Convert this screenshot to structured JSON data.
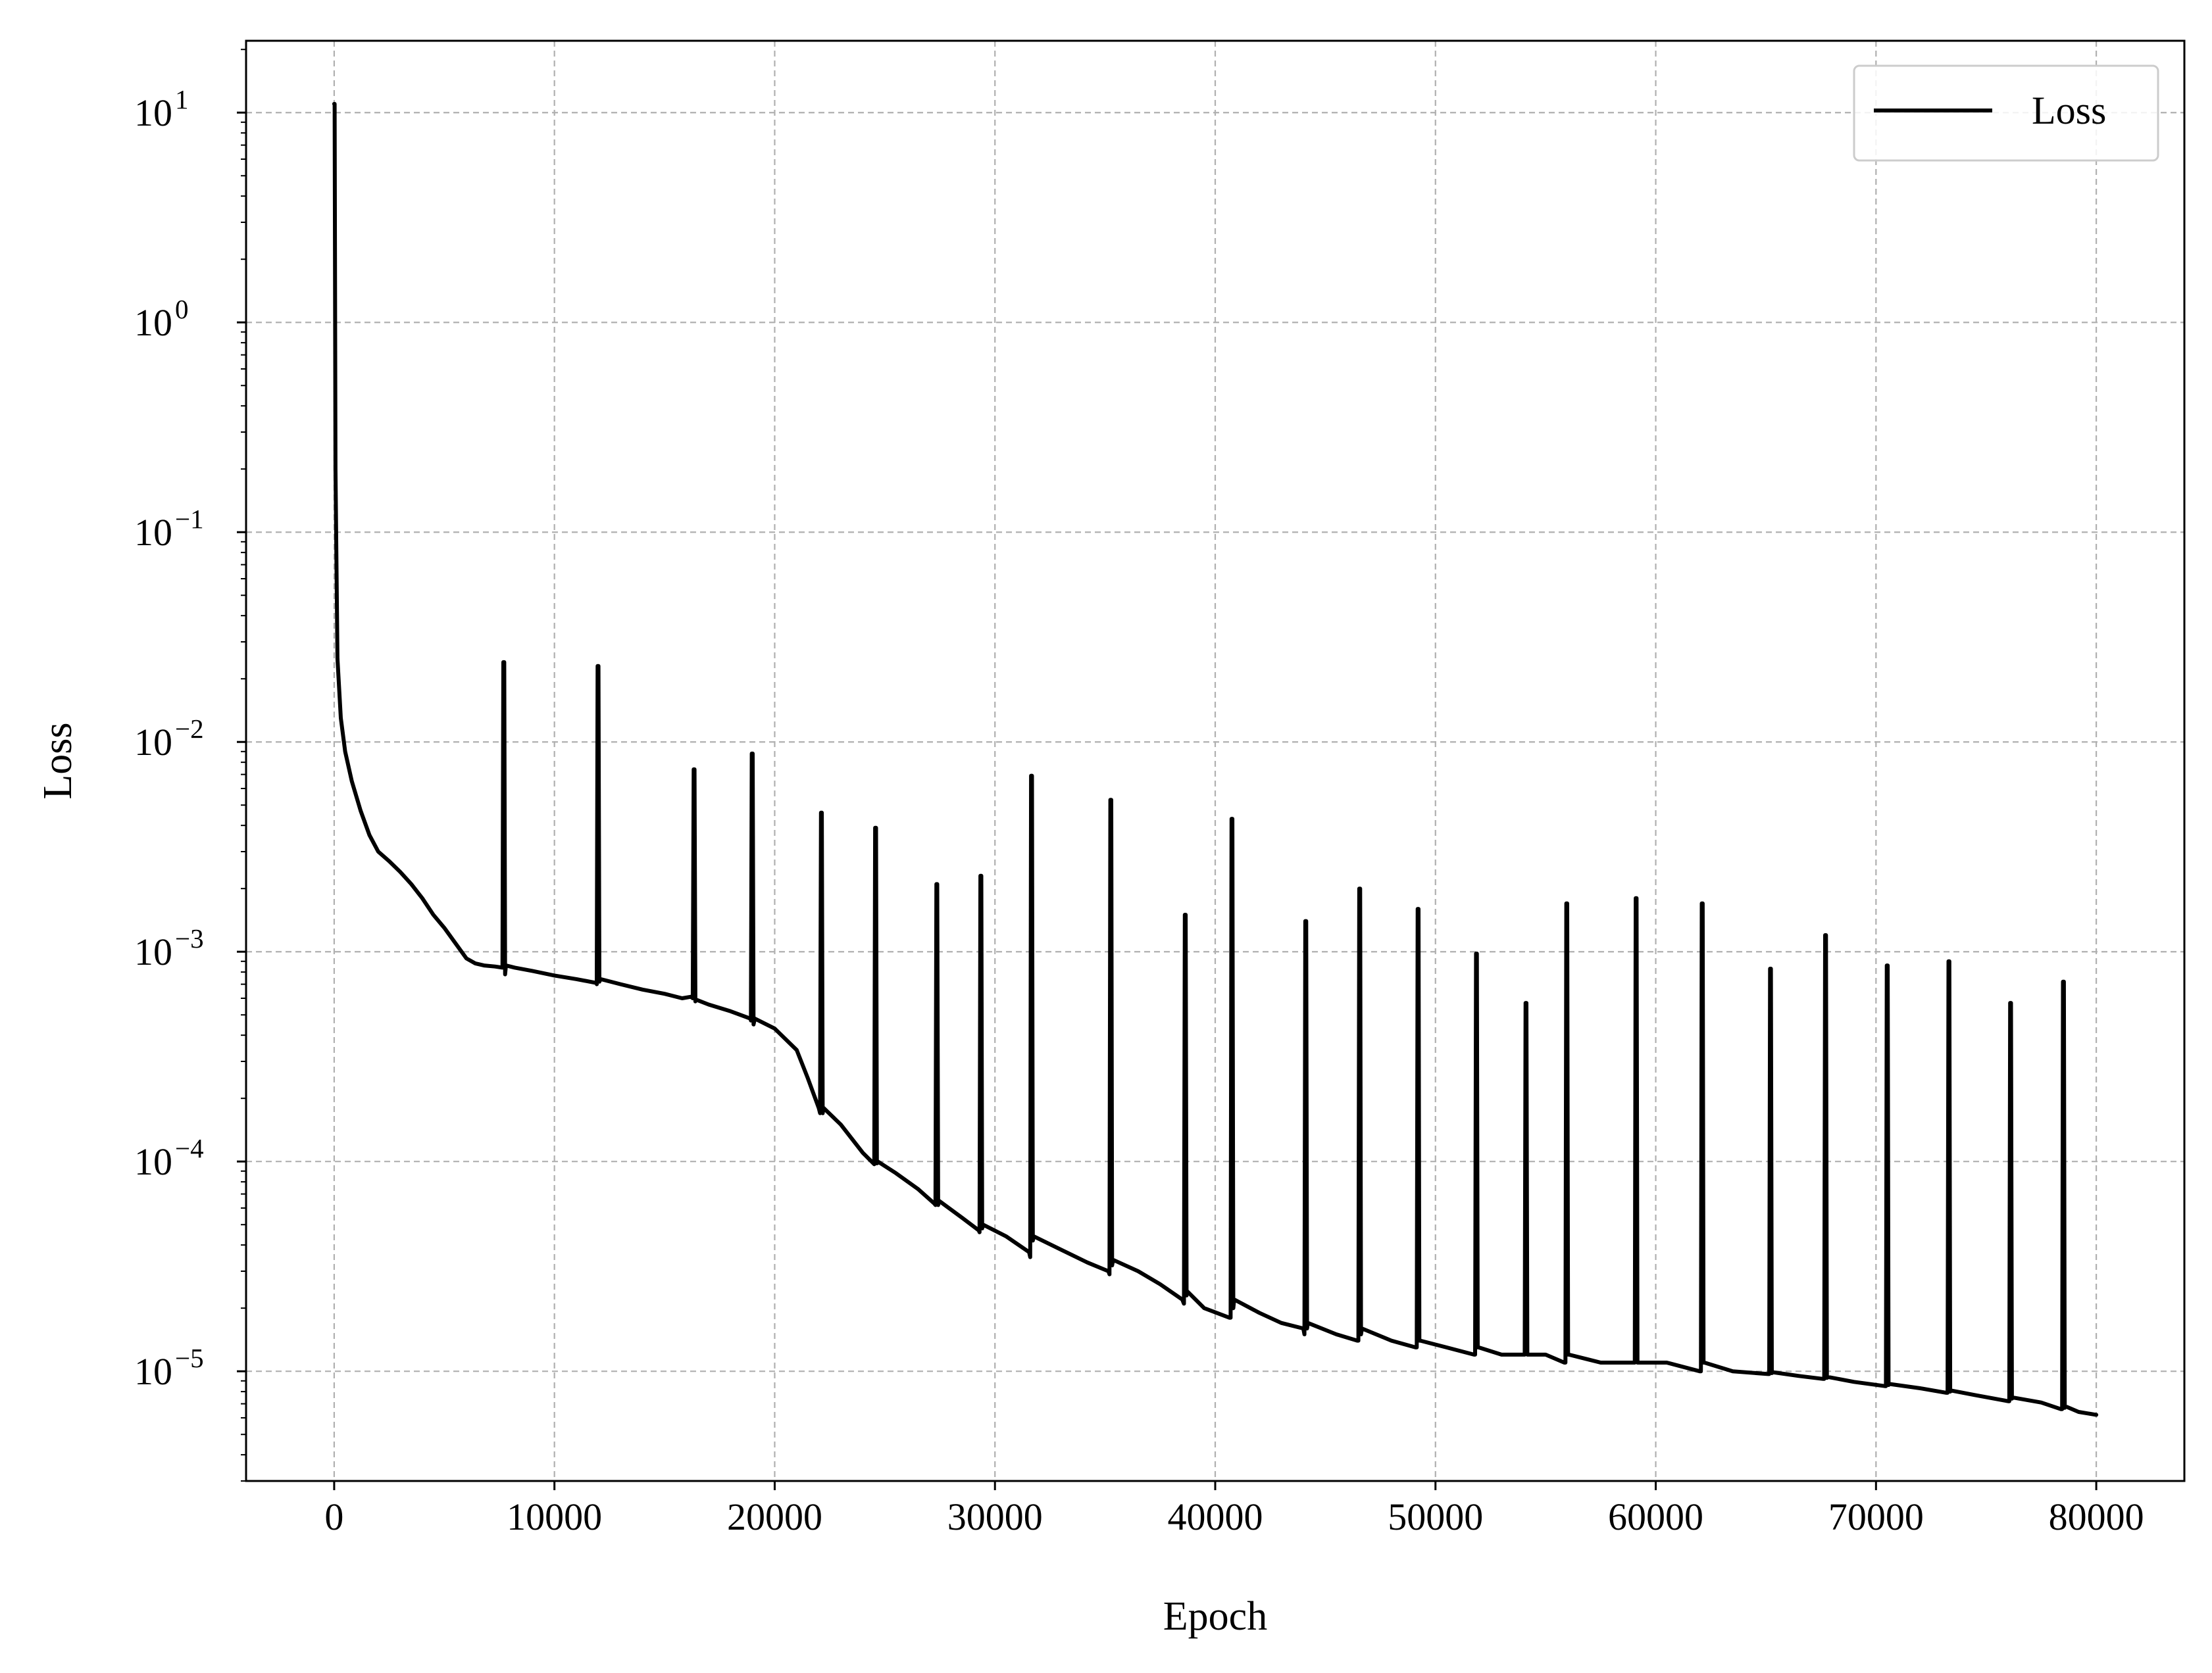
{
  "chart_data": {
    "type": "line",
    "title": "",
    "xlabel": "Epoch",
    "ylabel": "Loss",
    "xlim": [
      -4000,
      84000
    ],
    "ylim": [
      3e-06,
      22
    ],
    "yscale": "log",
    "grid": true,
    "legend_position": "top-right",
    "x_ticks": [
      0,
      10000,
      20000,
      30000,
      40000,
      50000,
      60000,
      70000,
      80000
    ],
    "x_tick_labels": [
      "0",
      "10000",
      "20000",
      "30000",
      "40000",
      "50000",
      "60000",
      "70000",
      "80000"
    ],
    "y_ticks": [
      10.0,
      1.0,
      0.1,
      0.01,
      0.001,
      0.0001,
      1e-05
    ],
    "y_tick_labels": [
      {
        "base": "10",
        "exp": "1"
      },
      {
        "base": "10",
        "exp": "0"
      },
      {
        "base": "10",
        "exp": "−1"
      },
      {
        "base": "10",
        "exp": "−2"
      },
      {
        "base": "10",
        "exp": "−3"
      },
      {
        "base": "10",
        "exp": "−4"
      },
      {
        "base": "10",
        "exp": "−5"
      }
    ],
    "series": [
      {
        "name": "Loss",
        "color": "#000000",
        "x": [
          0,
          20,
          60,
          150,
          300,
          500,
          800,
          1200,
          1600,
          2000,
          2500,
          3000,
          3500,
          4000,
          4500,
          5000,
          5500,
          6000,
          6400,
          6800,
          7300,
          7640,
          7680,
          7720,
          7760,
          7800,
          8200,
          9000,
          10000,
          11000,
          11900,
          11920,
          11960,
          12000,
          12040,
          12100,
          13000,
          14000,
          15000,
          15800,
          16200,
          16280,
          16320,
          16360,
          16400,
          16450,
          17000,
          18000,
          18900,
          18920,
          18960,
          19000,
          19040,
          19100,
          20000,
          21000,
          21500,
          22000,
          22060,
          22100,
          22140,
          22180,
          22220,
          23000,
          24000,
          24520,
          24560,
          24600,
          24640,
          24680,
          25500,
          26500,
          27250,
          27300,
          27340,
          27380,
          27420,
          27460,
          28500,
          29260,
          29300,
          29340,
          29380,
          29420,
          29460,
          30500,
          31550,
          31600,
          31640,
          31680,
          31720,
          31760,
          33000,
          34200,
          35150,
          35200,
          35240,
          35280,
          35320,
          35360,
          36500,
          37500,
          38500,
          38580,
          38620,
          38660,
          38700,
          38740,
          39500,
          40650,
          40700,
          40740,
          40780,
          40820,
          40860,
          42000,
          43000,
          44000,
          44050,
          44090,
          44130,
          44170,
          44210,
          45500,
          46450,
          46500,
          46540,
          46580,
          46620,
          46660,
          48000,
          49100,
          49150,
          49190,
          49230,
          49270,
          49310,
          50500,
          51750,
          51800,
          51840,
          51880,
          51920,
          51960,
          53000,
          54000,
          54050,
          54090,
          54130,
          54170,
          54210,
          55000,
          55850,
          55900,
          55940,
          55980,
          56020,
          56060,
          57500,
          59000,
          59050,
          59090,
          59130,
          59170,
          59210,
          60500,
          62000,
          62050,
          62090,
          62130,
          62170,
          62210,
          63500,
          65100,
          65150,
          65190,
          65230,
          65270,
          65310,
          66500,
          67600,
          67650,
          67690,
          67730,
          67770,
          67810,
          69000,
          70400,
          70450,
          70490,
          70530,
          70570,
          70610,
          72000,
          73200,
          73250,
          73290,
          73330,
          73370,
          73410,
          74500,
          76000,
          76050,
          76090,
          76130,
          76170,
          76210,
          77500,
          78400,
          78450,
          78490,
          78530,
          78570,
          78610,
          79200,
          80000
        ],
        "y": [
          11,
          11,
          0.2,
          0.025,
          0.013,
          0.009,
          0.0065,
          0.0047,
          0.0036,
          0.003,
          0.0027,
          0.0024,
          0.0021,
          0.0018,
          0.0015,
          0.0013,
          0.0011,
          0.00093,
          0.00088,
          0.00086,
          0.00085,
          0.00084,
          0.024,
          0.024,
          0.00078,
          0.00086,
          0.00084,
          0.00081,
          0.00077,
          0.00074,
          0.00071,
          0.0007,
          0.023,
          0.023,
          0.00072,
          0.00074,
          0.0007,
          0.00066,
          0.00063,
          0.0006,
          0.00061,
          0.0006,
          0.0074,
          0.0074,
          0.00058,
          0.00059,
          0.00056,
          0.00052,
          0.00048,
          0.00047,
          0.0088,
          0.0088,
          0.00045,
          0.00048,
          0.00043,
          0.00034,
          0.00025,
          0.00018,
          0.00017,
          0.0046,
          0.0046,
          0.00017,
          0.00018,
          0.00015,
          0.00011,
          9.7e-05,
          0.0039,
          0.0039,
          9.8e-05,
          0.0001,
          8.8e-05,
          7.4e-05,
          6.3e-05,
          6.2e-05,
          0.0021,
          0.0021,
          6.2e-05,
          6.5e-05,
          5.4e-05,
          4.7e-05,
          4.6e-05,
          0.0023,
          0.0023,
          4.8e-05,
          5e-05,
          4.4e-05,
          3.7e-05,
          3.5e-05,
          0.0069,
          0.0069,
          4.2e-05,
          4.4e-05,
          3.8e-05,
          3.3e-05,
          3e-05,
          2.9e-05,
          0.0053,
          0.0053,
          3.2e-05,
          3.4e-05,
          3e-05,
          2.6e-05,
          2.2e-05,
          2.1e-05,
          0.0015,
          0.0015,
          2.3e-05,
          2.4e-05,
          2e-05,
          1.8e-05,
          1.8e-05,
          0.0043,
          0.0043,
          2e-05,
          2.2e-05,
          1.9e-05,
          1.7e-05,
          1.6e-05,
          1.5e-05,
          0.0014,
          0.0014,
          1.6e-05,
          1.7e-05,
          1.5e-05,
          1.4e-05,
          1.4e-05,
          0.002,
          0.002,
          1.5e-05,
          1.6e-05,
          1.4e-05,
          1.3e-05,
          1.3e-05,
          0.0016,
          0.0016,
          1.4e-05,
          1.4e-05,
          1.3e-05,
          1.2e-05,
          1.2e-05,
          0.00098,
          0.00098,
          1.3e-05,
          1.3e-05,
          1.2e-05,
          1.2e-05,
          1.2e-05,
          0.00057,
          0.00057,
          1.2e-05,
          1.2e-05,
          1.2e-05,
          1.1e-05,
          1.1e-05,
          0.0017,
          0.0017,
          1.2e-05,
          1.2e-05,
          1.1e-05,
          1.1e-05,
          1.1e-05,
          0.0018,
          0.0018,
          1.1e-05,
          1.1e-05,
          1.1e-05,
          1e-05,
          1e-05,
          0.0017,
          0.0017,
          1.1e-05,
          1.1e-05,
          1e-05,
          9.7e-06,
          9.7e-06,
          0.00083,
          0.00083,
          9.8e-06,
          9.9e-06,
          9.5e-06,
          9.2e-06,
          9.2e-06,
          0.0012,
          0.0012,
          9.3e-06,
          9.4e-06,
          8.9e-06,
          8.5e-06,
          8.5e-06,
          0.00086,
          0.00086,
          8.6e-06,
          8.7e-06,
          8.3e-06,
          7.9e-06,
          7.9e-06,
          0.0009,
          0.0009,
          8e-06,
          8.1e-06,
          7.7e-06,
          7.2e-06,
          7.2e-06,
          0.00057,
          0.00057,
          7.4e-06,
          7.5e-06,
          7.1e-06,
          6.6e-06,
          6.6e-06,
          0.00072,
          0.00072,
          6.7e-06,
          6.8e-06,
          6.4e-06,
          6.2e-06
        ]
      }
    ]
  }
}
